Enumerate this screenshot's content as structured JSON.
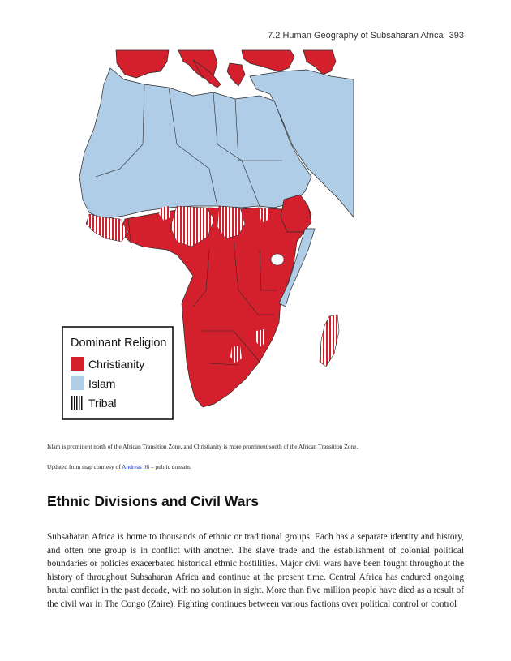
{
  "header": {
    "running_title": "7.2 Human Geography of Subsaharan Africa",
    "page_number": "393"
  },
  "map": {
    "colors": {
      "christianity": "#d4202c",
      "islam": "#afcde6",
      "tribal_stripe": "#d4202c",
      "border": "#2a2a2a"
    },
    "legend": {
      "title": "Dominant Religion",
      "items": [
        {
          "label": "Christianity",
          "swatch": "solid-red"
        },
        {
          "label": "Islam",
          "swatch": "solid-lightblue"
        },
        {
          "label": "Tribal",
          "swatch": "striped-black"
        }
      ]
    }
  },
  "caption": {
    "text": "Islam is prominent north of the African Transition Zone, and Christianity is more prominent south of the African Transition Zone."
  },
  "credit": {
    "prefix": "Updated from map courtesy of ",
    "link_text": "Andreas 06",
    "suffix": " – public domain."
  },
  "section": {
    "heading": "Ethnic Divisions and Civil Wars",
    "paragraph": "Subsaharan Africa is home to thousands of ethnic or traditional groups. Each has a separate identity and history, and often one group is in conflict with another. The slave trade and the establishment of colonial political boundaries or policies exacerbated historical ethnic hostilities. Major civil wars have been fought throughout the history of throughout Subsaharan Africa and continue at the present time. Central Africa has endured ongoing brutal conflict in the past decade, with no solution in sight. More than five million people have died as a result of the civil war in The Congo (Zaire). Fighting continues between various factions over political control or control"
  }
}
